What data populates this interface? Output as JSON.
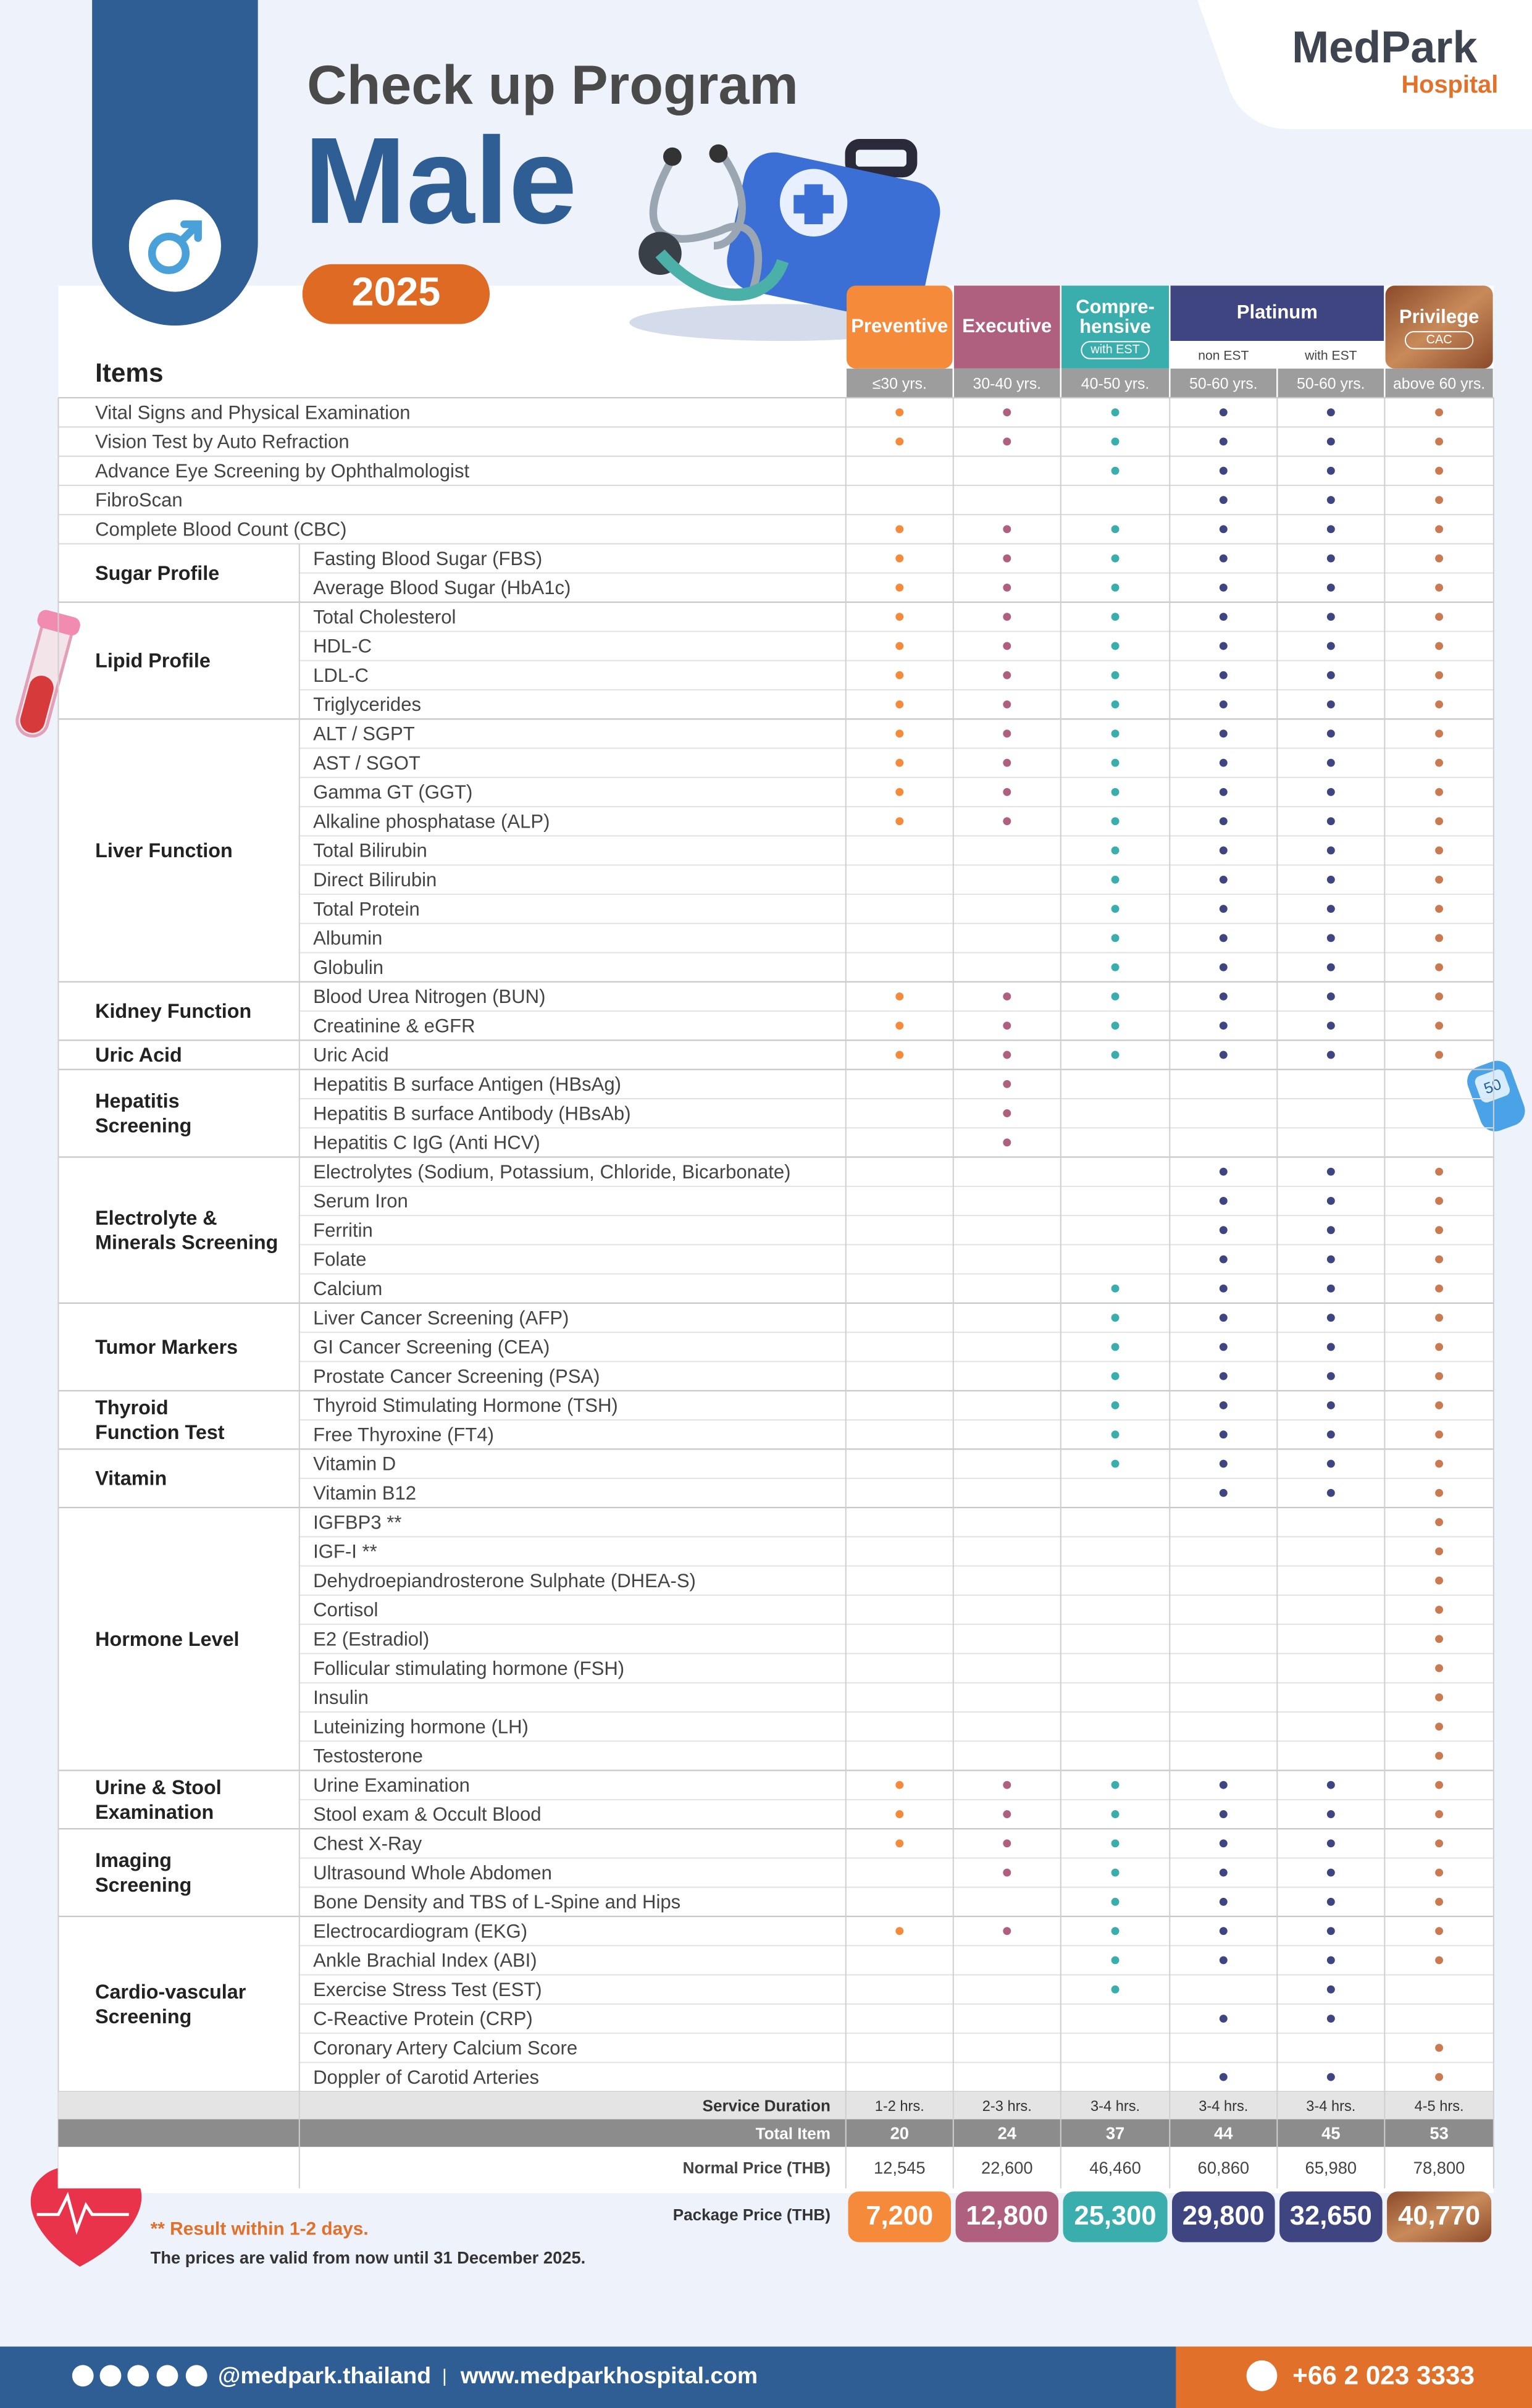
{
  "header": {
    "title": "Check up Program",
    "subtitle": "Male",
    "year": "2025",
    "logo": {
      "name": "MedPark",
      "sub": "Hospital"
    }
  },
  "items_header": "Items",
  "package_groups": [
    {
      "name": [
        "Preventive"
      ],
      "color": "#f58b3a",
      "columns": [
        {
          "age": "≤30 yrs."
        }
      ]
    },
    {
      "name": [
        "Executive"
      ],
      "color": "#b0607f",
      "columns": [
        {
          "age": "30-40 yrs."
        }
      ]
    },
    {
      "name": [
        "Compre-",
        "hensive"
      ],
      "tag": "with EST",
      "color": "#3aadad",
      "columns": [
        {
          "age": "40-50 yrs."
        }
      ]
    },
    {
      "name": [
        "Platinum"
      ],
      "color": "#3f4580",
      "columns": [
        {
          "label": "non EST",
          "age": "50-60 yrs."
        },
        {
          "label": "with EST",
          "age": "50-60 yrs."
        }
      ]
    },
    {
      "name": [
        "Privilege"
      ],
      "tag": "CAC",
      "color": "#b06a42",
      "columns": [
        {
          "age": "above 60 yrs."
        }
      ]
    }
  ],
  "sections": [
    {
      "item": "Vital Signs and Physical Examination",
      "included": [
        true,
        true,
        true,
        true,
        true,
        true
      ]
    },
    {
      "item": "Vision Test by Auto Refraction",
      "included": [
        true,
        true,
        true,
        true,
        true,
        true
      ]
    },
    {
      "item": "Advance Eye Screening by Ophthalmologist",
      "included": [
        false,
        false,
        true,
        true,
        true,
        true
      ]
    },
    {
      "item": "FibroScan",
      "included": [
        false,
        false,
        false,
        true,
        true,
        true
      ]
    },
    {
      "item": "Complete Blood Count (CBC)",
      "included": [
        true,
        true,
        true,
        true,
        true,
        true
      ]
    },
    {
      "category": [
        "Sugar Profile"
      ],
      "rows": [
        {
          "item": "Fasting Blood Sugar (FBS)",
          "included": [
            true,
            true,
            true,
            true,
            true,
            true
          ]
        },
        {
          "item": "Average Blood Sugar (HbA1c)",
          "included": [
            true,
            true,
            true,
            true,
            true,
            true
          ]
        }
      ]
    },
    {
      "category": [
        "Lipid Profile"
      ],
      "rows": [
        {
          "item": "Total Cholesterol",
          "included": [
            true,
            true,
            true,
            true,
            true,
            true
          ]
        },
        {
          "item": "HDL-C",
          "included": [
            true,
            true,
            true,
            true,
            true,
            true
          ]
        },
        {
          "item": "LDL-C",
          "included": [
            true,
            true,
            true,
            true,
            true,
            true
          ]
        },
        {
          "item": "Triglycerides",
          "included": [
            true,
            true,
            true,
            true,
            true,
            true
          ]
        }
      ]
    },
    {
      "category": [
        "Liver Function"
      ],
      "rows": [
        {
          "item": "ALT / SGPT",
          "included": [
            true,
            true,
            true,
            true,
            true,
            true
          ]
        },
        {
          "item": "AST / SGOT",
          "included": [
            true,
            true,
            true,
            true,
            true,
            true
          ]
        },
        {
          "item": "Gamma GT (GGT)",
          "included": [
            true,
            true,
            true,
            true,
            true,
            true
          ]
        },
        {
          "item": "Alkaline phosphatase (ALP)",
          "included": [
            true,
            true,
            true,
            true,
            true,
            true
          ]
        },
        {
          "item": "Total Bilirubin",
          "included": [
            false,
            false,
            true,
            true,
            true,
            true
          ]
        },
        {
          "item": "Direct Bilirubin",
          "included": [
            false,
            false,
            true,
            true,
            true,
            true
          ]
        },
        {
          "item": "Total Protein",
          "included": [
            false,
            false,
            true,
            true,
            true,
            true
          ]
        },
        {
          "item": "Albumin",
          "included": [
            false,
            false,
            true,
            true,
            true,
            true
          ]
        },
        {
          "item": "Globulin",
          "included": [
            false,
            false,
            true,
            true,
            true,
            true
          ]
        }
      ]
    },
    {
      "category": [
        "Kidney Function"
      ],
      "rows": [
        {
          "item": "Blood Urea Nitrogen (BUN)",
          "included": [
            true,
            true,
            true,
            true,
            true,
            true
          ]
        },
        {
          "item": "Creatinine & eGFR",
          "included": [
            true,
            true,
            true,
            true,
            true,
            true
          ]
        }
      ]
    },
    {
      "category": [
        "Uric Acid"
      ],
      "rows": [
        {
          "item": "Uric Acid",
          "included": [
            true,
            true,
            true,
            true,
            true,
            true
          ]
        }
      ]
    },
    {
      "category": [
        "Hepatitis",
        "Screening"
      ],
      "rows": [
        {
          "item": "Hepatitis B surface Antigen (HBsAg)",
          "included": [
            false,
            true,
            false,
            false,
            false,
            false
          ]
        },
        {
          "item": "Hepatitis B surface Antibody (HBsAb)",
          "included": [
            false,
            true,
            false,
            false,
            false,
            false
          ]
        },
        {
          "item": "Hepatitis C IgG (Anti HCV)",
          "included": [
            false,
            true,
            false,
            false,
            false,
            false
          ]
        }
      ]
    },
    {
      "category": [
        "Electrolyte &",
        "Minerals Screening"
      ],
      "rows": [
        {
          "item": "Electrolytes (Sodium, Potassium, Chloride, Bicarbonate)",
          "included": [
            false,
            false,
            false,
            true,
            true,
            true
          ]
        },
        {
          "item": "Serum Iron",
          "included": [
            false,
            false,
            false,
            true,
            true,
            true
          ]
        },
        {
          "item": "Ferritin",
          "included": [
            false,
            false,
            false,
            true,
            true,
            true
          ]
        },
        {
          "item": "Folate",
          "included": [
            false,
            false,
            false,
            true,
            true,
            true
          ]
        },
        {
          "item": "Calcium",
          "included": [
            false,
            false,
            true,
            true,
            true,
            true
          ]
        }
      ]
    },
    {
      "category": [
        "Tumor Markers"
      ],
      "rows": [
        {
          "item": "Liver Cancer Screening (AFP)",
          "included": [
            false,
            false,
            true,
            true,
            true,
            true
          ]
        },
        {
          "item": "GI Cancer Screening (CEA)",
          "included": [
            false,
            false,
            true,
            true,
            true,
            true
          ]
        },
        {
          "item": "Prostate Cancer Screening (PSA)",
          "included": [
            false,
            false,
            true,
            true,
            true,
            true
          ]
        }
      ]
    },
    {
      "category": [
        "Thyroid",
        "Function Test"
      ],
      "rows": [
        {
          "item": "Thyroid Stimulating Hormone (TSH)",
          "included": [
            false,
            false,
            true,
            true,
            true,
            true
          ]
        },
        {
          "item": "Free Thyroxine (FT4)",
          "included": [
            false,
            false,
            true,
            true,
            true,
            true
          ]
        }
      ]
    },
    {
      "category": [
        "Vitamin"
      ],
      "rows": [
        {
          "item": "Vitamin D",
          "included": [
            false,
            false,
            true,
            true,
            true,
            true
          ]
        },
        {
          "item": "Vitamin B12",
          "included": [
            false,
            false,
            false,
            true,
            true,
            true
          ]
        }
      ]
    },
    {
      "category": [
        "Hormone Level"
      ],
      "rows": [
        {
          "item": "IGFBP3 **",
          "included": [
            false,
            false,
            false,
            false,
            false,
            true
          ]
        },
        {
          "item": "IGF-I **",
          "included": [
            false,
            false,
            false,
            false,
            false,
            true
          ]
        },
        {
          "item": "Dehydroepiandrosterone Sulphate (DHEA-S)",
          "included": [
            false,
            false,
            false,
            false,
            false,
            true
          ]
        },
        {
          "item": "Cortisol",
          "included": [
            false,
            false,
            false,
            false,
            false,
            true
          ]
        },
        {
          "item": "E2 (Estradiol)",
          "included": [
            false,
            false,
            false,
            false,
            false,
            true
          ]
        },
        {
          "item": "Follicular stimulating hormone (FSH)",
          "included": [
            false,
            false,
            false,
            false,
            false,
            true
          ]
        },
        {
          "item": "Insulin",
          "included": [
            false,
            false,
            false,
            false,
            false,
            true
          ]
        },
        {
          "item": "Luteinizing hormone (LH)",
          "included": [
            false,
            false,
            false,
            false,
            false,
            true
          ]
        },
        {
          "item": "Testosterone",
          "included": [
            false,
            false,
            false,
            false,
            false,
            true
          ]
        }
      ]
    },
    {
      "category": [
        "Urine & Stool",
        "Examination"
      ],
      "rows": [
        {
          "item": "Urine Examination",
          "included": [
            true,
            true,
            true,
            true,
            true,
            true
          ]
        },
        {
          "item": "Stool exam & Occult Blood",
          "included": [
            true,
            true,
            true,
            true,
            true,
            true
          ]
        }
      ]
    },
    {
      "category": [
        "Imaging",
        "Screening"
      ],
      "rows": [
        {
          "item": "Chest X-Ray",
          "included": [
            true,
            true,
            true,
            true,
            true,
            true
          ]
        },
        {
          "item": "Ultrasound Whole Abdomen",
          "included": [
            false,
            true,
            true,
            true,
            true,
            true
          ]
        },
        {
          "item": "Bone Density and TBS of L-Spine and Hips",
          "included": [
            false,
            false,
            true,
            true,
            true,
            true
          ]
        }
      ]
    },
    {
      "category": [
        "Cardio-vascular",
        "Screening"
      ],
      "rows": [
        {
          "item": "Electrocardiogram (EKG)",
          "included": [
            true,
            true,
            true,
            true,
            true,
            true
          ]
        },
        {
          "item": "Ankle Brachial Index (ABI)",
          "included": [
            false,
            false,
            true,
            true,
            true,
            true
          ]
        },
        {
          "item": "Exercise Stress Test (EST)",
          "included": [
            false,
            false,
            true,
            false,
            true,
            false
          ]
        },
        {
          "item": "C-Reactive Protein (CRP)",
          "included": [
            false,
            false,
            false,
            true,
            true,
            false
          ]
        },
        {
          "item": "Coronary Artery Calcium Score",
          "included": [
            false,
            false,
            false,
            false,
            false,
            true
          ]
        },
        {
          "item": "Doppler of Carotid Arteries",
          "included": [
            false,
            false,
            false,
            true,
            true,
            true
          ]
        }
      ]
    }
  ],
  "summary": [
    {
      "label": "Service Duration",
      "values": [
        "1-2 hrs.",
        "2-3 hrs.",
        "3-4 hrs.",
        "3-4 hrs.",
        "3-4 hrs.",
        "4-5 hrs."
      ]
    },
    {
      "label": "Total Item",
      "values": [
        "20",
        "24",
        "37",
        "44",
        "45",
        "53"
      ]
    },
    {
      "label": "Normal Price (THB)",
      "values": [
        "12,545",
        "22,600",
        "46,460",
        "60,860",
        "65,980",
        "78,800"
      ]
    },
    {
      "label": "Package Price (THB)",
      "values": [
        "7,200",
        "12,800",
        "25,300",
        "29,800",
        "32,650",
        "40,770"
      ]
    }
  ],
  "notes": [
    "** Result within 1-2 days.",
    "The prices are valid from now until 31 December 2025."
  ],
  "contact": {
    "social": "@medpark.thailand",
    "website": "www.medparkhospital.com",
    "phone": "+66 2 023 3333"
  }
}
